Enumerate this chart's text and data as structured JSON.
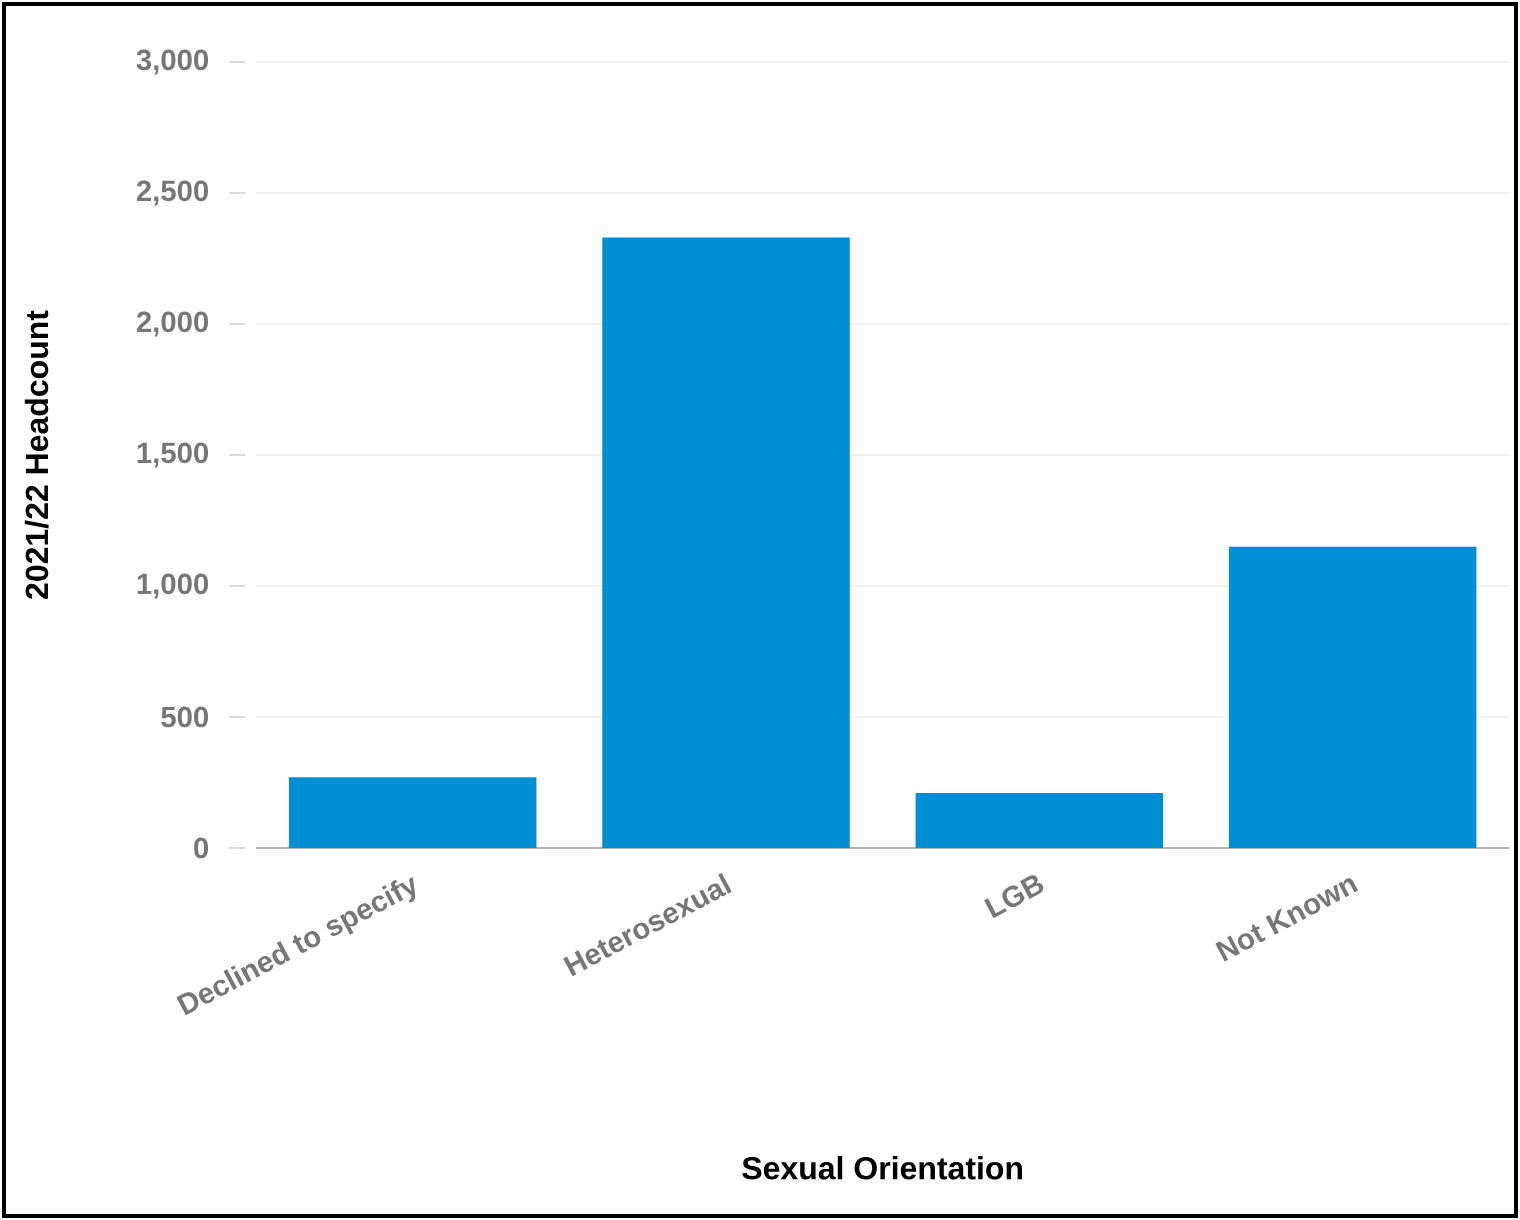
{
  "chart_data": {
    "type": "bar",
    "xlabel": "Sexual Orientation",
    "ylabel": "2021/22 Headcount",
    "categories": [
      "Declined to specify",
      "Heterosexual",
      "LGB",
      "Not Known"
    ],
    "values": [
      270,
      2330,
      210,
      1150
    ],
    "color": "#008fd5",
    "ylim": [
      0,
      3000
    ],
    "yticks": [
      {
        "value": 0,
        "label": "0"
      },
      {
        "value": 500,
        "label": "500"
      },
      {
        "value": 1000,
        "label": "1,000"
      },
      {
        "value": 1500,
        "label": "1,500"
      },
      {
        "value": 2000,
        "label": "2,000"
      },
      {
        "value": 2500,
        "label": "2,500"
      },
      {
        "value": 3000,
        "label": "3,000"
      }
    ],
    "grid": "y"
  }
}
